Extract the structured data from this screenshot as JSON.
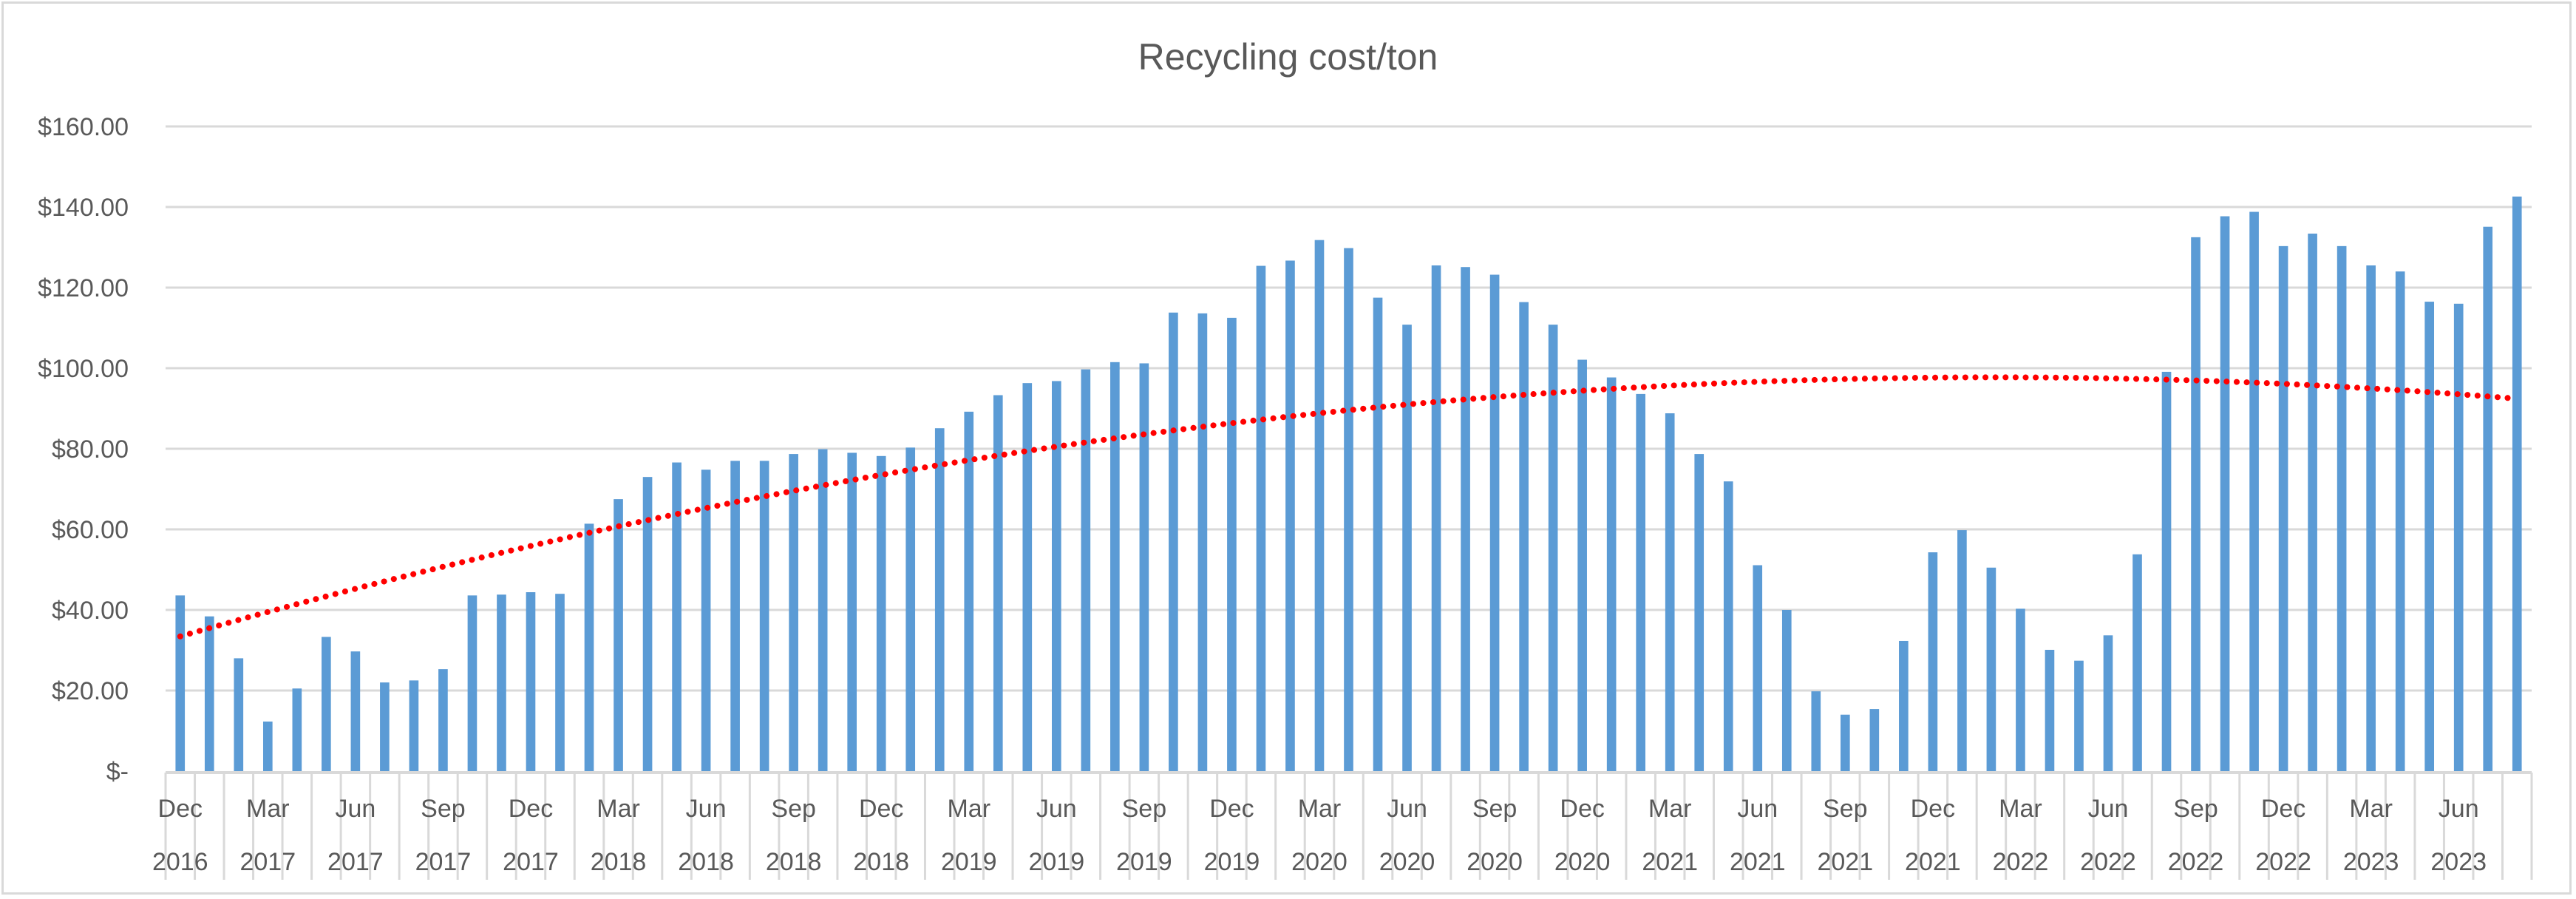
{
  "chart_data": {
    "type": "bar",
    "title": "Recycling cost/ton",
    "xlabel": "",
    "ylabel": "",
    "ylim": [
      0,
      160
    ],
    "y_step": 20,
    "y_tick_labels": [
      "$-",
      "$20.00",
      "$40.00",
      "$60.00",
      "$80.00",
      "$100.00",
      "$120.00",
      "$140.00",
      "$160.00"
    ],
    "grid": true,
    "legend": "none",
    "label_interval": 3,
    "tick_labels": [
      {
        "month": "Dec",
        "year": "2016"
      },
      {
        "month": "Mar",
        "year": "2017"
      },
      {
        "month": "Jun",
        "year": "2017"
      },
      {
        "month": "Sep",
        "year": "2017"
      },
      {
        "month": "Dec",
        "year": "2017"
      },
      {
        "month": "Mar",
        "year": "2018"
      },
      {
        "month": "Jun",
        "year": "2018"
      },
      {
        "month": "Sep",
        "year": "2018"
      },
      {
        "month": "Dec",
        "year": "2018"
      },
      {
        "month": "Mar",
        "year": "2019"
      },
      {
        "month": "Jun",
        "year": "2019"
      },
      {
        "month": "Sep",
        "year": "2019"
      },
      {
        "month": "Dec",
        "year": "2019"
      },
      {
        "month": "Mar",
        "year": "2020"
      },
      {
        "month": "Jun",
        "year": "2020"
      },
      {
        "month": "Sep",
        "year": "2020"
      },
      {
        "month": "Dec",
        "year": "2020"
      },
      {
        "month": "Mar",
        "year": "2021"
      },
      {
        "month": "Jun",
        "year": "2021"
      },
      {
        "month": "Sep",
        "year": "2021"
      },
      {
        "month": "Dec",
        "year": "2021"
      },
      {
        "month": "Mar",
        "year": "2022"
      },
      {
        "month": "Jun",
        "year": "2022"
      },
      {
        "month": "Sep",
        "year": "2022"
      },
      {
        "month": "Dec",
        "year": "2022"
      },
      {
        "month": "Mar",
        "year": "2023"
      },
      {
        "month": "Jun",
        "year": "2023"
      }
    ],
    "values": [
      43.6,
      38.4,
      28.0,
      12.3,
      20.5,
      33.3,
      29.7,
      22.0,
      22.5,
      25.3,
      43.6,
      43.8,
      44.4,
      44.0,
      61.4,
      67.5,
      73.0,
      76.6,
      74.8,
      77.0,
      77.0,
      78.7,
      79.9,
      79.0,
      78.2,
      80.3,
      85.1,
      89.2,
      93.3,
      96.3,
      96.8,
      99.7,
      101.5,
      101.2,
      113.8,
      113.6,
      112.5,
      125.4,
      126.7,
      131.8,
      129.8,
      117.5,
      110.8,
      125.5,
      125.1,
      123.2,
      116.4,
      110.8,
      102.1,
      97.7,
      93.6,
      88.8,
      78.7,
      71.9,
      51.1,
      40.0,
      19.8,
      14.0,
      15.4,
      32.3,
      54.3,
      59.8,
      50.5,
      40.3,
      30.1,
      27.4,
      33.7,
      53.8,
      99.1,
      132.5,
      137.7,
      138.8,
      130.3,
      133.4,
      130.3,
      125.5,
      124.0,
      116.5,
      116.0,
      135.1,
      142.6
    ],
    "bar_color": "#5B9BD5",
    "trendline": {
      "type": "polynomial",
      "order": 2,
      "style": "dotted",
      "color": "#FF0000"
    },
    "grid_color": "#D9D9D9",
    "text_color": "#595959"
  }
}
